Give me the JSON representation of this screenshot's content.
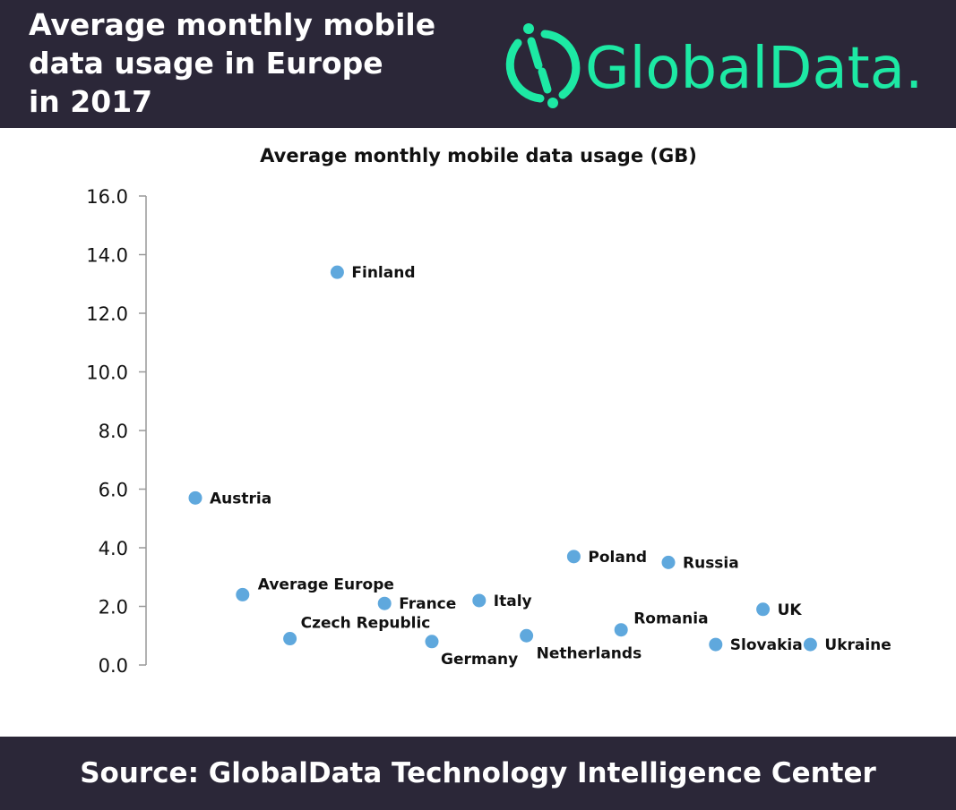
{
  "header": {
    "title_lines": [
      "Average monthly mobile",
      "data usage in Europe",
      "in 2017"
    ],
    "logo_text": "GlobalData."
  },
  "footer": {
    "source": "Source: GlobalData Technology Intelligence Center"
  },
  "colors": {
    "background_bar": "#2b2738",
    "brand_green": "#1de9a4",
    "point": "#5fa8dd"
  },
  "chart_data": {
    "type": "scatter",
    "title": "Average monthly mobile data usage (GB)",
    "ylim": [
      0,
      16
    ],
    "yticks": [
      "0.0",
      "2.0",
      "4.0",
      "6.0",
      "8.0",
      "10.0",
      "12.0",
      "14.0",
      "16.0"
    ],
    "grid": false,
    "points": [
      {
        "label": "Austria",
        "y": 5.7
      },
      {
        "label": "Average Europe",
        "y": 2.4
      },
      {
        "label": "Czech Republic",
        "y": 0.9
      },
      {
        "label": "Finland",
        "y": 13.4
      },
      {
        "label": "France",
        "y": 2.1
      },
      {
        "label": "Germany",
        "y": 0.8
      },
      {
        "label": "Italy",
        "y": 2.2
      },
      {
        "label": "Netherlands",
        "y": 1.0
      },
      {
        "label": "Poland",
        "y": 3.7
      },
      {
        "label": "Romania",
        "y": 1.2
      },
      {
        "label": "Russia",
        "y": 3.5
      },
      {
        "label": "Slovakia",
        "y": 0.7
      },
      {
        "label": "UK",
        "y": 1.9
      },
      {
        "label": "Ukraine",
        "y": 0.7
      }
    ]
  }
}
